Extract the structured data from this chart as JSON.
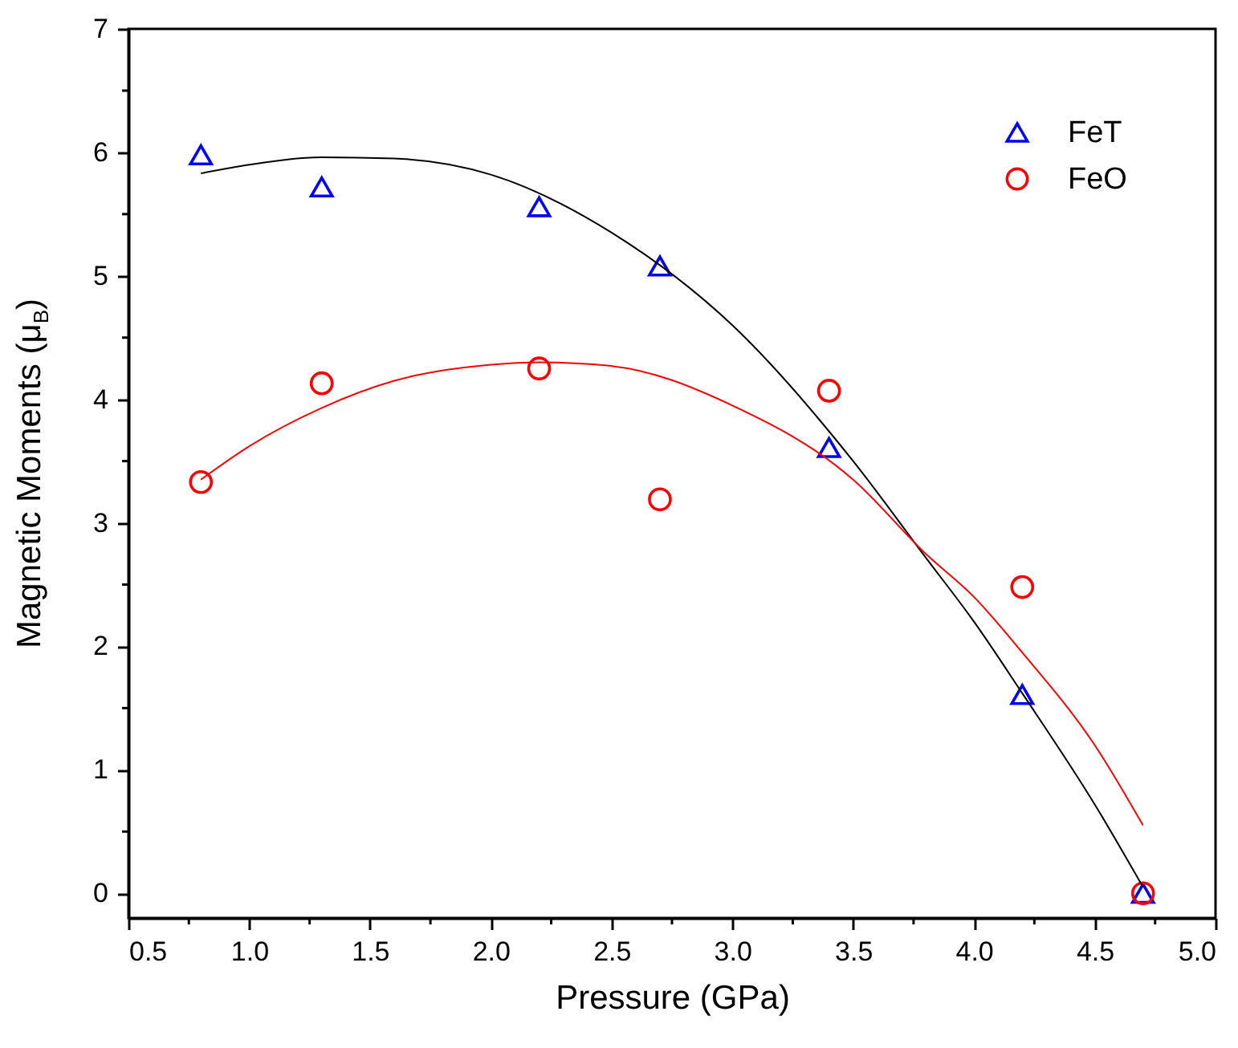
{
  "chart_data": {
    "type": "scatter",
    "xlabel": "Pressure (GPa)",
    "ylabel": "Magnetic Moments (μ$_{B}$)",
    "xlim": [
      0.5,
      5.0
    ],
    "ylim": [
      -0.2,
      7
    ],
    "xticks": [
      {
        "value": 0.5,
        "label": "0.5"
      },
      {
        "value": 0.75,
        "label": null
      },
      {
        "value": 1,
        "label": "1.0"
      },
      {
        "value": 1.25,
        "label": null
      },
      {
        "value": 1.5,
        "label": "1.5"
      },
      {
        "value": 1.75,
        "label": null
      },
      {
        "value": 2,
        "label": "2.0"
      },
      {
        "value": 2.25,
        "label": null
      },
      {
        "value": 2.5,
        "label": "2.5"
      },
      {
        "value": 2.75,
        "label": null
      },
      {
        "value": 3,
        "label": "3.0"
      },
      {
        "value": 3.25,
        "label": null
      },
      {
        "value": 3.5,
        "label": "3.5"
      },
      {
        "value": 3.75,
        "label": null
      },
      {
        "value": 4,
        "label": "4.0"
      },
      {
        "value": 4.25,
        "label": null
      },
      {
        "value": 4.5,
        "label": "4.5"
      },
      {
        "value": 4.75,
        "label": null
      },
      {
        "value": 5,
        "label": "5.0"
      }
    ],
    "yticks": [
      0,
      {
        "value": 0.5,
        "label": null
      },
      1,
      {
        "value": 1.5,
        "label": null
      },
      2,
      {
        "value": 2.5,
        "label": null
      },
      3,
      {
        "value": 3.5,
        "label": null
      },
      4,
      {
        "value": 4.5,
        "label": null
      },
      5,
      {
        "value": 5.5,
        "label": null
      },
      6,
      {
        "value": 6.5,
        "label": null
      },
      7
    ],
    "grid": false,
    "legend": "top right",
    "series": [
      {
        "name": "FeT",
        "color": "#0000ff",
        "marker": "triangle",
        "x": [
          0.8,
          1.3,
          2.2,
          2.7,
          3.4,
          4.2,
          4.7
        ],
        "values": [
          5.98,
          5.72,
          5.56,
          5.08,
          3.61,
          1.61,
          0.0
        ]
      },
      {
        "name": "FeO",
        "color": "#ff0000",
        "marker": "circle",
        "x": [
          0.8,
          1.3,
          2.2,
          2.7,
          3.4,
          4.2,
          4.7
        ],
        "values": [
          3.33,
          4.13,
          4.25,
          3.19,
          4.07,
          2.48,
          0.0
        ]
      },
      {
        "type": "line",
        "color": "#000000",
        "x": [
          0.8,
          1.0,
          1.3,
          1.6,
          2.0,
          2.5,
          3.0,
          3.5,
          3.8,
          4.0,
          4.2,
          4.5,
          4.7
        ],
        "values": [
          5.83,
          5.9,
          5.96,
          5.95,
          5.82,
          5.35,
          4.6,
          3.5,
          2.72,
          2.2,
          1.62,
          0.72,
          0.05
        ]
      },
      {
        "type": "line",
        "color": "#ff0000",
        "x": [
          0.8,
          1.0,
          1.3,
          1.6,
          2.0,
          2.2,
          2.5,
          3.0,
          3.5,
          3.8,
          4.0,
          4.2,
          4.5,
          4.7
        ],
        "values": [
          3.35,
          3.62,
          3.93,
          4.15,
          4.28,
          4.3,
          4.27,
          3.95,
          3.35,
          2.75,
          2.4,
          1.95,
          1.2,
          0.55
        ]
      }
    ]
  }
}
